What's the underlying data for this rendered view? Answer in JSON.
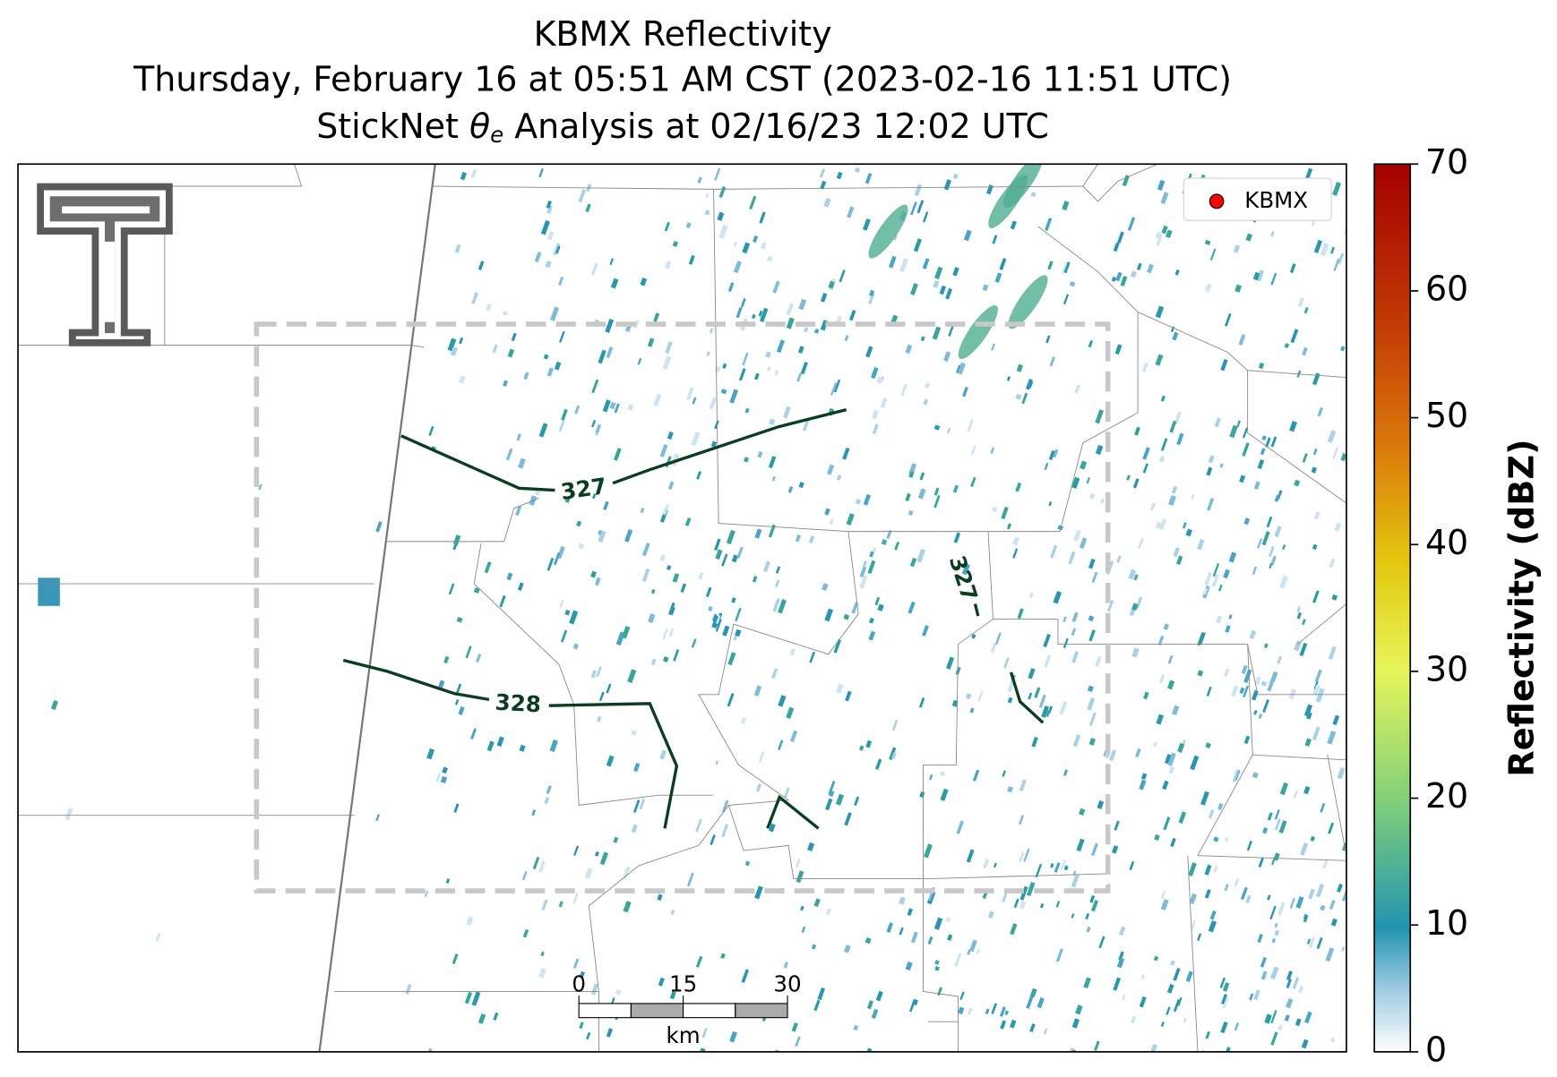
{
  "title": {
    "line1": "KBMX Reflectivity",
    "line2": "Thursday, February 16 at 05:51 AM CST (2023-02-16 11:51 UTC)",
    "line3": [
      "StickNet ",
      "θ",
      "e",
      " Analysis at 02/16/23 12:02 UTC"
    ]
  },
  "legend": {
    "label": "KBMX",
    "color": "#ff0000"
  },
  "contours": [
    {
      "value": 327
    },
    {
      "value": 327
    },
    {
      "value": 328
    }
  ],
  "colorbar": {
    "label": "Reflectivity (dBZ)",
    "range": [
      0,
      70
    ],
    "ticks": [
      0,
      10,
      20,
      30,
      40,
      50,
      60,
      70
    ]
  },
  "scale_bar": {
    "ticks": [
      0,
      15,
      30
    ],
    "range": [
      0,
      30
    ],
    "unit": "km"
  }
}
